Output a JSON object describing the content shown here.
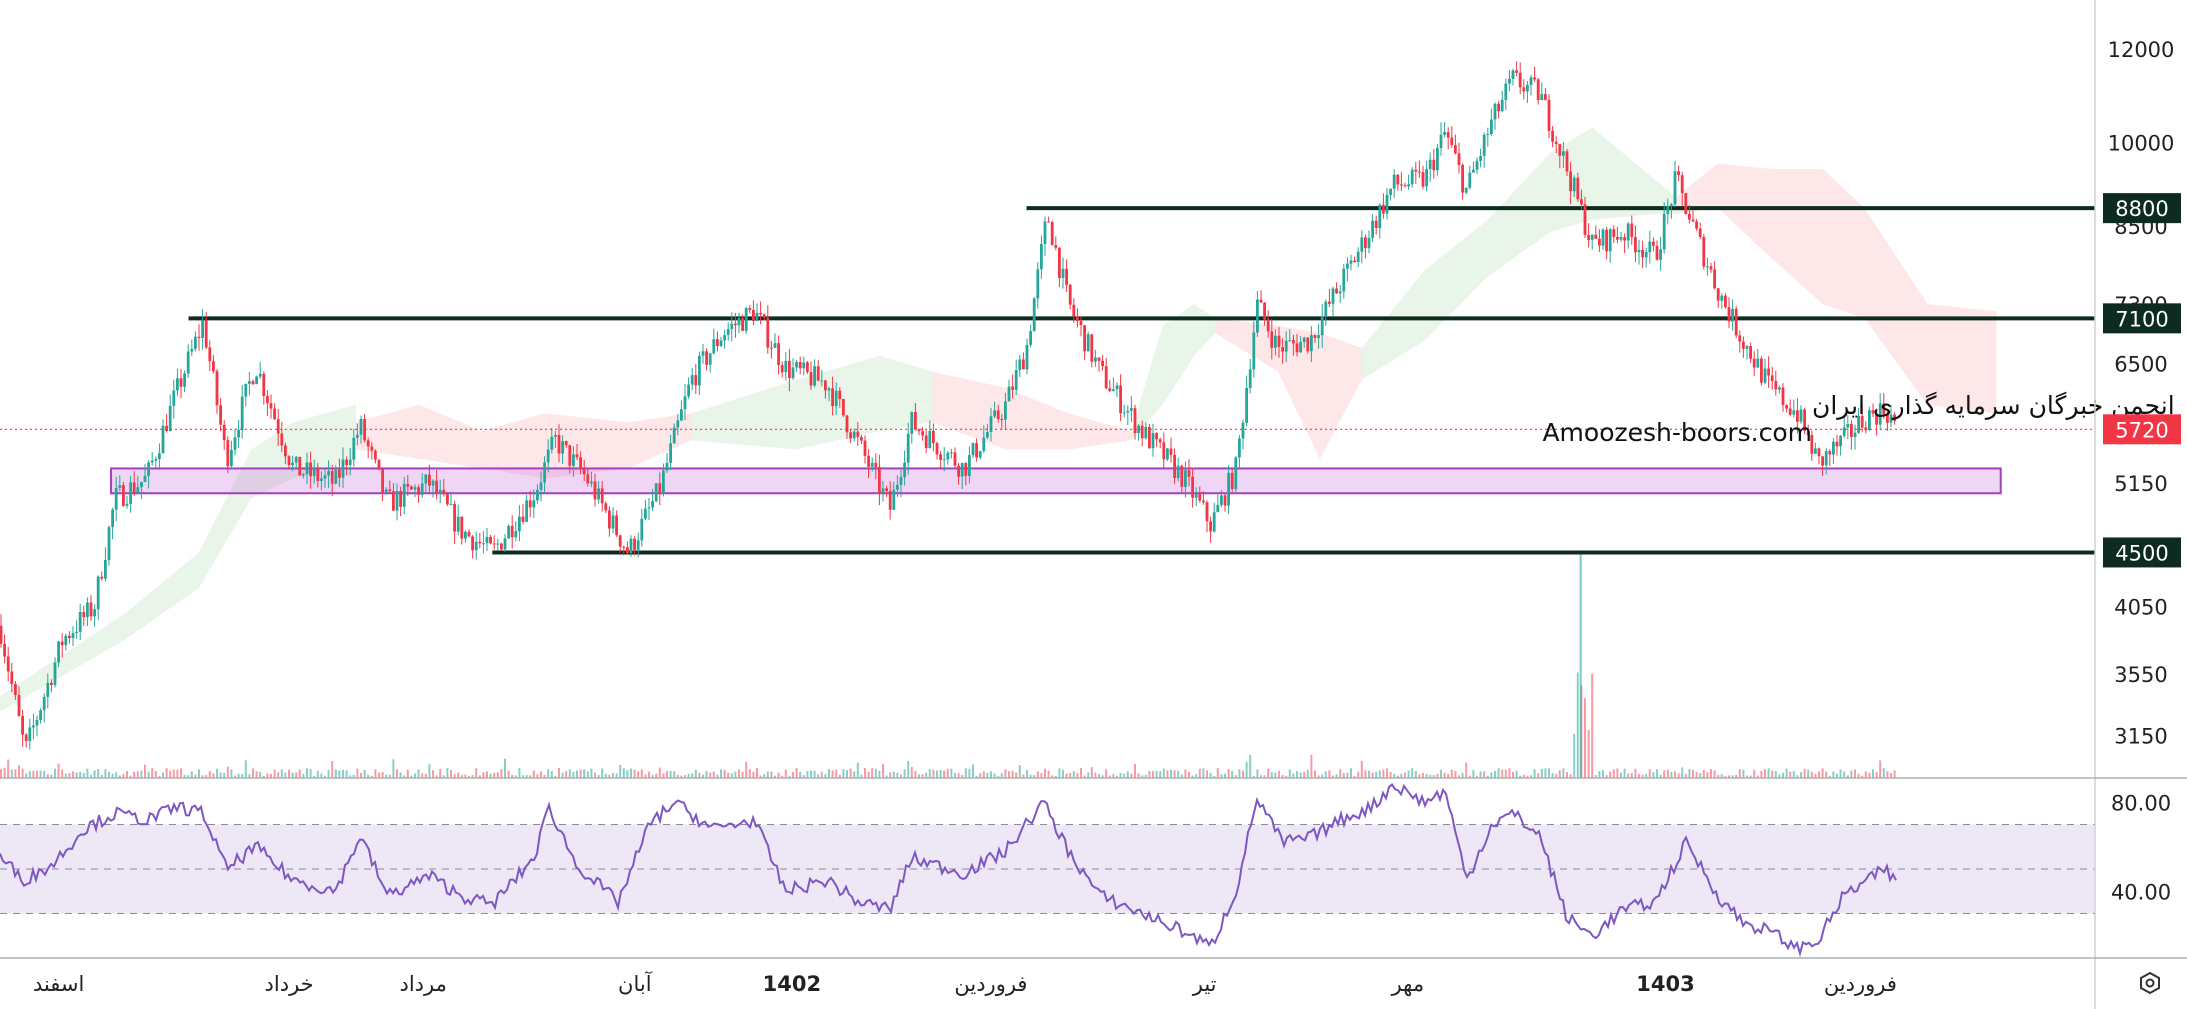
{
  "chart_data": [
    {
      "type": "candlestick",
      "panel": "price",
      "y_scale": "log",
      "ylim": [
        2900,
        13200
      ],
      "y_ticks": [
        12000,
        10000,
        8500,
        7300,
        6500,
        5150,
        4050,
        3550,
        3150
      ],
      "y_tick_labels": [
        "12000",
        "10000",
        "8500",
        "7300",
        "6500",
        "5150",
        "4050",
        "3550",
        "3150"
      ],
      "last_price": {
        "value": 5720,
        "label": "5720",
        "color": "#f23645"
      },
      "levels": [
        {
          "value": 8800,
          "label": "8800",
          "x_from": 0.49
        },
        {
          "value": 7100,
          "label": "7100",
          "x_from": 0.09
        },
        {
          "value": 4500,
          "label": "4500",
          "x_from": 0.235
        }
      ],
      "support_zone": {
        "low": 5050,
        "high": 5300,
        "x_from": 0.053,
        "x_to": 0.955,
        "color": "#c76ad6"
      },
      "watermark": {
        "line1": "انجمن خبرگان سرمایه گذاری ایران",
        "line2": "Amoozesh-boors.com"
      },
      "price_path": [
        [
          0.0,
          3900
        ],
        [
          0.012,
          3050
        ],
        [
          0.03,
          3800
        ],
        [
          0.045,
          4050
        ],
        [
          0.055,
          5000
        ],
        [
          0.07,
          5200
        ],
        [
          0.085,
          6200
        ],
        [
          0.097,
          7050
        ],
        [
          0.108,
          5400
        ],
        [
          0.122,
          6500
        ],
        [
          0.14,
          5300
        ],
        [
          0.16,
          5150
        ],
        [
          0.172,
          5750
        ],
        [
          0.185,
          4950
        ],
        [
          0.205,
          5150
        ],
        [
          0.22,
          4700
        ],
        [
          0.235,
          4500
        ],
        [
          0.255,
          5050
        ],
        [
          0.265,
          5600
        ],
        [
          0.28,
          5200
        ],
        [
          0.3,
          4500
        ],
        [
          0.315,
          5100
        ],
        [
          0.33,
          6300
        ],
        [
          0.345,
          6900
        ],
        [
          0.36,
          7200
        ],
        [
          0.375,
          6450
        ],
        [
          0.395,
          6250
        ],
        [
          0.41,
          5550
        ],
        [
          0.425,
          4900
        ],
        [
          0.435,
          5800
        ],
        [
          0.46,
          5300
        ],
        [
          0.48,
          6000
        ],
        [
          0.49,
          6700
        ],
        [
          0.5,
          8700
        ],
        [
          0.51,
          7300
        ],
        [
          0.525,
          6400
        ],
        [
          0.545,
          5700
        ],
        [
          0.565,
          5200
        ],
        [
          0.578,
          4750
        ],
        [
          0.59,
          5300
        ],
        [
          0.6,
          7300
        ],
        [
          0.61,
          6700
        ],
        [
          0.625,
          6800
        ],
        [
          0.64,
          7600
        ],
        [
          0.655,
          8500
        ],
        [
          0.665,
          9200
        ],
        [
          0.68,
          9300
        ],
        [
          0.69,
          10200
        ],
        [
          0.7,
          9100
        ],
        [
          0.712,
          10400
        ],
        [
          0.722,
          11300
        ],
        [
          0.735,
          11000
        ],
        [
          0.748,
          9500
        ],
        [
          0.76,
          8200
        ],
        [
          0.775,
          8400
        ],
        [
          0.79,
          8000
        ],
        [
          0.8,
          9300
        ],
        [
          0.808,
          8500
        ],
        [
          0.82,
          7500
        ],
        [
          0.832,
          6800
        ],
        [
          0.845,
          6200
        ],
        [
          0.858,
          5900
        ],
        [
          0.868,
          5350
        ],
        [
          0.88,
          5600
        ],
        [
          0.89,
          5850
        ],
        [
          0.9,
          5950
        ],
        [
          0.906,
          5720
        ]
      ],
      "cloud_segments": [
        {
          "color": "green",
          "points": [
            [
              0.0,
              3300,
              3400
            ],
            [
              0.06,
              3800,
              4000
            ],
            [
              0.095,
              4200,
              4500
            ],
            [
              0.12,
              5000,
              5500
            ],
            [
              0.14,
              5200,
              5800
            ],
            [
              0.17,
              5400,
              6000
            ]
          ]
        },
        {
          "color": "red",
          "points": [
            [
              0.17,
              5500,
              5800
            ],
            [
              0.2,
              5400,
              6000
            ],
            [
              0.23,
              5300,
              5700
            ]
          ]
        },
        {
          "color": "red",
          "points": [
            [
              0.23,
              5300,
              5700
            ],
            [
              0.26,
              5200,
              5900
            ],
            [
              0.3,
              5300,
              5800
            ],
            [
              0.33,
              5600,
              5900
            ]
          ]
        },
        {
          "color": "green",
          "points": [
            [
              0.33,
              5600,
              5900
            ],
            [
              0.38,
              5500,
              6300
            ],
            [
              0.42,
              5700,
              6600
            ],
            [
              0.445,
              5800,
              6400
            ]
          ]
        },
        {
          "color": "red",
          "points": [
            [
              0.445,
              5800,
              6400
            ],
            [
              0.48,
              5500,
              6200
            ],
            [
              0.51,
              5500,
              5900
            ],
            [
              0.54,
              5600,
              5700
            ]
          ]
        },
        {
          "color": "green",
          "points": [
            [
              0.54,
              5600,
              5700
            ],
            [
              0.555,
              6000,
              7000
            ],
            [
              0.57,
              6600,
              7300
            ],
            [
              0.58,
              6900,
              7100
            ]
          ]
        },
        {
          "color": "red",
          "points": [
            [
              0.58,
              6900,
              7100
            ],
            [
              0.61,
              6400,
              7000
            ],
            [
              0.63,
              5400,
              6900
            ],
            [
              0.65,
              6300,
              6700
            ]
          ]
        },
        {
          "color": "green",
          "points": [
            [
              0.65,
              6300,
              6700
            ],
            [
              0.68,
              6800,
              7800
            ],
            [
              0.71,
              7700,
              8600
            ],
            [
              0.74,
              8400,
              9800
            ],
            [
              0.76,
              8600,
              10300
            ],
            [
              0.79,
              8700,
              9300
            ],
            [
              0.8,
              8700,
              9000
            ]
          ]
        },
        {
          "color": "red",
          "points": [
            [
              0.8,
              8700,
              9000
            ],
            [
              0.82,
              8800,
              9600
            ],
            [
              0.845,
              8000,
              9500
            ],
            [
              0.87,
              7300,
              9500
            ],
            [
              0.89,
              7100,
              8800
            ],
            [
              0.92,
              6000,
              7300
            ],
            [
              0.953,
              5900,
              7200
            ]
          ]
        }
      ]
    },
    {
      "type": "volume",
      "panel": "price",
      "note_bars": "small bars along price panel bottom"
    },
    {
      "type": "line",
      "panel": "oscillator",
      "ylim": [
        10,
        90
      ],
      "y_ticks": [
        80,
        40
      ],
      "y_tick_labels": [
        "80.00",
        "40.00"
      ],
      "band": {
        "upper": 70,
        "middle": 50,
        "lower": 30
      },
      "series": [
        {
          "color": "#7e57c2",
          "points": [
            [
              0.0,
              55
            ],
            [
              0.012,
              45
            ],
            [
              0.025,
              52
            ],
            [
              0.04,
              68
            ],
            [
              0.055,
              75
            ],
            [
              0.07,
              72
            ],
            [
              0.085,
              78
            ],
            [
              0.097,
              75
            ],
            [
              0.108,
              50
            ],
            [
              0.122,
              60
            ],
            [
              0.14,
              45
            ],
            [
              0.16,
              40
            ],
            [
              0.172,
              65
            ],
            [
              0.185,
              38
            ],
            [
              0.205,
              47
            ],
            [
              0.22,
              38
            ],
            [
              0.235,
              34
            ],
            [
              0.255,
              55
            ],
            [
              0.262,
              78
            ],
            [
              0.275,
              52
            ],
            [
              0.295,
              35
            ],
            [
              0.31,
              70
            ],
            [
              0.322,
              80
            ],
            [
              0.34,
              68
            ],
            [
              0.36,
              72
            ],
            [
              0.375,
              40
            ],
            [
              0.395,
              45
            ],
            [
              0.41,
              35
            ],
            [
              0.425,
              32
            ],
            [
              0.435,
              55
            ],
            [
              0.46,
              48
            ],
            [
              0.48,
              58
            ],
            [
              0.498,
              80
            ],
            [
              0.51,
              58
            ],
            [
              0.525,
              38
            ],
            [
              0.545,
              30
            ],
            [
              0.565,
              22
            ],
            [
              0.578,
              15
            ],
            [
              0.59,
              40
            ],
            [
              0.6,
              82
            ],
            [
              0.612,
              62
            ],
            [
              0.625,
              64
            ],
            [
              0.64,
              72
            ],
            [
              0.655,
              78
            ],
            [
              0.665,
              88
            ],
            [
              0.68,
              80
            ],
            [
              0.69,
              85
            ],
            [
              0.7,
              45
            ],
            [
              0.712,
              70
            ],
            [
              0.722,
              75
            ],
            [
              0.735,
              65
            ],
            [
              0.748,
              28
            ],
            [
              0.76,
              20
            ],
            [
              0.775,
              32
            ],
            [
              0.79,
              35
            ],
            [
              0.805,
              62
            ],
            [
              0.82,
              38
            ],
            [
              0.832,
              26
            ],
            [
              0.845,
              22
            ],
            [
              0.858,
              14
            ],
            [
              0.868,
              18
            ],
            [
              0.88,
              38
            ],
            [
              0.89,
              44
            ],
            [
              0.9,
              50
            ],
            [
              0.906,
              42
            ]
          ]
        }
      ]
    }
  ],
  "x_axis": {
    "labels": [
      {
        "text": "اسفند",
        "pos": 0.028
      },
      {
        "text": "خرداد",
        "pos": 0.138
      },
      {
        "text": "مرداد",
        "pos": 0.202
      },
      {
        "text": "آبان",
        "pos": 0.303
      },
      {
        "text": "1402",
        "pos": 0.378,
        "bold": true
      },
      {
        "text": "فروردین",
        "pos": 0.473
      },
      {
        "text": "تیر",
        "pos": 0.575
      },
      {
        "text": "مهر",
        "pos": 0.672
      },
      {
        "text": "1403",
        "pos": 0.795,
        "bold": true
      },
      {
        "text": "فروردین",
        "pos": 0.888
      }
    ]
  },
  "settings_icon": "settings-hexagon-icon",
  "colors": {
    "up": "#26a69a",
    "down": "#f23645",
    "level_line": "#0d2b1f",
    "level_badge_bg": "#0d2b1f",
    "oscillator_band": "#ede7f6"
  }
}
